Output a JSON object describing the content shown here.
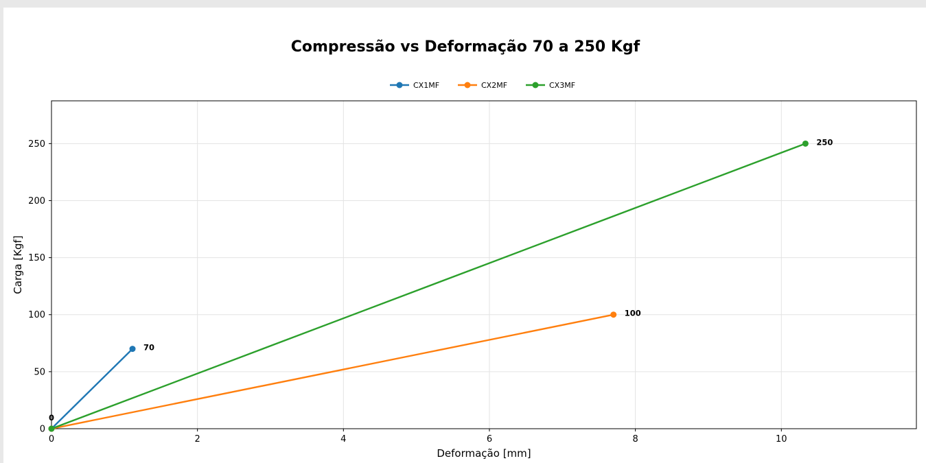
{
  "chart_data": {
    "type": "line",
    "title": "Compressão vs Deformação 70 a 250 Kgf",
    "xlabel": "Deformação [mm]",
    "ylabel": "Carga [Kgf]",
    "xlim": [
      0,
      11.85
    ],
    "ylim": [
      0,
      287.5
    ],
    "xticks": [
      0,
      2,
      4,
      6,
      8,
      10
    ],
    "yticks": [
      0,
      50,
      100,
      150,
      200,
      250
    ],
    "grid": true,
    "legend_position": "top-center",
    "series": [
      {
        "name": "CX1MF",
        "color": "#1f77b4",
        "x": [
          0,
          1.11
        ],
        "y": [
          0,
          70
        ],
        "labels": [
          "",
          "70"
        ]
      },
      {
        "name": "CX2MF",
        "color": "#ff7f0e",
        "x": [
          0,
          7.7
        ],
        "y": [
          0,
          100
        ],
        "labels": [
          "",
          "100"
        ]
      },
      {
        "name": "CX3MF",
        "color": "#2ca02c",
        "x": [
          0,
          10.33
        ],
        "y": [
          0,
          250
        ],
        "labels": [
          "0",
          "250"
        ]
      }
    ]
  }
}
